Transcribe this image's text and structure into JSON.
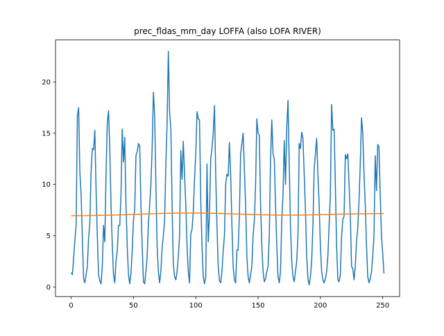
{
  "chart_data": {
    "type": "line",
    "title": "prec_fldas_mm_day LOFFA (also LOFA RIVER)",
    "xlim": [
      -12.55,
      263.55
    ],
    "xticks": [
      0,
      50,
      100,
      150,
      200,
      250
    ],
    "ylim": [
      -0.94,
      24.1
    ],
    "yticks": [
      0,
      5,
      10,
      15,
      20
    ],
    "series": [
      {
        "color": "#1f77b4",
        "x": [
          0,
          1,
          2,
          3,
          4,
          5,
          6,
          7,
          8,
          9,
          10,
          11,
          12,
          13,
          14,
          15,
          16,
          17,
          18,
          19,
          20,
          21,
          22,
          23,
          24,
          25,
          26,
          27,
          28,
          29,
          30,
          31,
          32,
          33,
          34,
          35,
          36,
          37,
          38,
          39,
          40,
          41,
          42,
          43,
          44,
          45,
          46,
          47,
          48,
          49,
          50,
          51,
          52,
          53,
          54,
          55,
          56,
          57,
          58,
          59,
          60,
          61,
          62,
          63,
          64,
          65,
          66,
          67,
          68,
          69,
          70,
          71,
          72,
          73,
          74,
          75,
          76,
          77,
          78,
          79,
          80,
          81,
          82,
          83,
          84,
          85,
          86,
          87,
          88,
          89,
          90,
          91,
          92,
          93,
          94,
          95,
          96,
          97,
          98,
          99,
          100,
          101,
          102,
          103,
          104,
          105,
          106,
          107,
          108,
          109,
          110,
          111,
          112,
          113,
          114,
          115,
          116,
          117,
          118,
          119,
          120,
          121,
          122,
          123,
          124,
          125,
          126,
          127,
          128,
          129,
          130,
          131,
          132,
          133,
          134,
          135,
          136,
          137,
          138,
          139,
          140,
          141,
          142,
          143,
          144,
          145,
          146,
          147,
          148,
          149,
          150,
          151,
          152,
          153,
          154,
          155,
          156,
          157,
          158,
          159,
          160,
          161,
          162,
          163,
          164,
          165,
          166,
          167,
          168,
          169,
          170,
          171,
          172,
          173,
          174,
          175,
          176,
          177,
          178,
          179,
          180,
          181,
          182,
          183,
          184,
          185,
          186,
          187,
          188,
          189,
          190,
          191,
          192,
          193,
          194,
          195,
          196,
          197,
          198,
          199,
          200,
          201,
          202,
          203,
          204,
          205,
          206,
          207,
          208,
          209,
          210,
          211,
          212,
          213,
          214,
          215,
          216,
          217,
          218,
          219,
          220,
          221,
          222,
          223,
          224,
          225,
          226,
          227,
          228,
          229,
          230,
          231,
          232,
          233,
          234,
          235,
          236,
          237,
          238,
          239,
          240,
          241,
          242,
          243,
          244,
          245,
          246,
          247,
          248,
          249,
          250,
          251
        ],
        "values": [
          1.4,
          1.2,
          2.8,
          4.6,
          6.0,
          16.7,
          17.5,
          11.2,
          9.0,
          4.8,
          0.8,
          0.4,
          1.2,
          2.0,
          4.8,
          6.2,
          11.2,
          13.5,
          13.4,
          15.3,
          9.5,
          5.0,
          1.2,
          0.6,
          0.3,
          2.0,
          6.0,
          4.4,
          11.0,
          16.0,
          17.2,
          13.5,
          8.0,
          4.2,
          1.2,
          0.4,
          2.5,
          3.5,
          6.0,
          6.0,
          9.0,
          15.4,
          12.2,
          14.6,
          8.0,
          4.0,
          1.2,
          0.3,
          1.3,
          3.5,
          6.5,
          7.5,
          12.8,
          13.2,
          14.0,
          13.8,
          8.0,
          4.0,
          0.5,
          0.3,
          1.5,
          3.0,
          6.2,
          8.0,
          10.0,
          13.5,
          19.0,
          16.8,
          10.0,
          4.0,
          1.5,
          0.4,
          1.5,
          3.8,
          5.0,
          6.5,
          12.0,
          16.0,
          23.0,
          17.0,
          15.5,
          8.0,
          2.2,
          1.0,
          0.7,
          1.5,
          3.0,
          5.0,
          13.3,
          10.5,
          14.2,
          11.0,
          8.0,
          4.0,
          1.5,
          0.4,
          5.2,
          5.6,
          7.3,
          10.5,
          13.0,
          17.1,
          16.4,
          16.3,
          8.5,
          4.0,
          1.0,
          0.3,
          1.0,
          12.0,
          4.4,
          7.0,
          12.5,
          13.5,
          15.0,
          17.7,
          11.0,
          6.0,
          2.0,
          0.6,
          0.4,
          1.5,
          3.5,
          5.0,
          10.0,
          11.0,
          10.8,
          14.1,
          11.0,
          6.0,
          2.0,
          0.7,
          0.4,
          3.6,
          3.6,
          7.0,
          13.0,
          14.0,
          15.0,
          11.5,
          8.0,
          3.0,
          1.0,
          0.4,
          1.2,
          2.0,
          5.0,
          6.5,
          10.0,
          16.4,
          15.0,
          14.8,
          8.0,
          4.0,
          1.5,
          0.5,
          0.8,
          1.5,
          2.0,
          5.0,
          12.5,
          16.3,
          13.0,
          12.5,
          8.0,
          4.0,
          1.0,
          0.4,
          1.5,
          6.5,
          9.0,
          14.3,
          10.0,
          15.5,
          18.2,
          12.0,
          6.0,
          2.5,
          1.0,
          0.5,
          1.5,
          2.5,
          5.0,
          14.0,
          13.5,
          15.1,
          14.5,
          11.0,
          7.5,
          3.0,
          0.8,
          0.2,
          1.0,
          2.5,
          6.0,
          11.5,
          13.0,
          14.5,
          11.0,
          8.0,
          4.0,
          1.5,
          0.7,
          0.4,
          0.8,
          1.5,
          3.0,
          6.0,
          9.0,
          17.8,
          15.3,
          15.4,
          10.0,
          4.0,
          0.7,
          0.5,
          1.2,
          5.0,
          6.6,
          6.9,
          12.9,
          12.5,
          13.0,
          10.0,
          7.0,
          2.0,
          1.8,
          0.7,
          2.0,
          4.5,
          5.8,
          8.5,
          12.0,
          16.5,
          15.0,
          11.0,
          8.0,
          4.0,
          1.0,
          0.4,
          0.8,
          1.5,
          3.0,
          5.0,
          12.8,
          9.4,
          13.9,
          13.7,
          9.0,
          5.0,
          3.3,
          1.3
        ]
      },
      {
        "color": "#ff7f0e",
        "x": [
          0,
          12,
          24,
          36,
          48,
          60,
          72,
          84,
          96,
          108,
          120,
          132,
          144,
          156,
          168,
          180,
          192,
          204,
          216,
          228,
          240,
          251
        ],
        "values": [
          6.95,
          6.96,
          6.98,
          7.02,
          7.07,
          7.12,
          7.17,
          7.2,
          7.21,
          7.2,
          7.17,
          7.12,
          7.07,
          7.03,
          7.01,
          7.01,
          7.03,
          7.06,
          7.1,
          7.13,
          7.15,
          7.16
        ]
      }
    ]
  }
}
